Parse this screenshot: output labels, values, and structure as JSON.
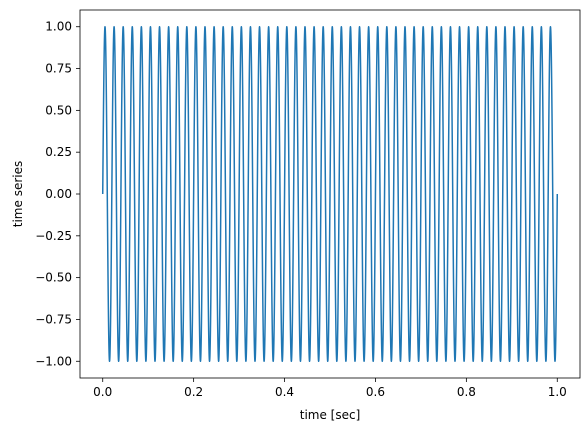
{
  "chart_data": {
    "type": "line",
    "title": "",
    "xlabel": "time [sec]",
    "ylabel": "time series",
    "xlim": [
      -0.05,
      1.05
    ],
    "ylim": [
      -1.1,
      1.1
    ],
    "xticks": [
      0.0,
      0.2,
      0.4,
      0.6,
      0.8,
      1.0
    ],
    "xtick_labels": [
      "0.0",
      "0.2",
      "0.4",
      "0.6",
      "0.8",
      "1.0"
    ],
    "yticks": [
      -1.0,
      -0.75,
      -0.5,
      -0.25,
      0.0,
      0.25,
      0.5,
      0.75,
      1.0
    ],
    "ytick_labels": [
      "−1.00",
      "−0.75",
      "−0.50",
      "−0.25",
      "0.00",
      "0.25",
      "0.50",
      "0.75",
      "1.00"
    ],
    "grid": false,
    "series": [
      {
        "function": "sin(2*pi*f*t)",
        "frequency_hz": 50,
        "amplitude": 1.0,
        "x_start": 0.0,
        "x_end": 1.0,
        "color": "#1f77b4"
      }
    ]
  }
}
